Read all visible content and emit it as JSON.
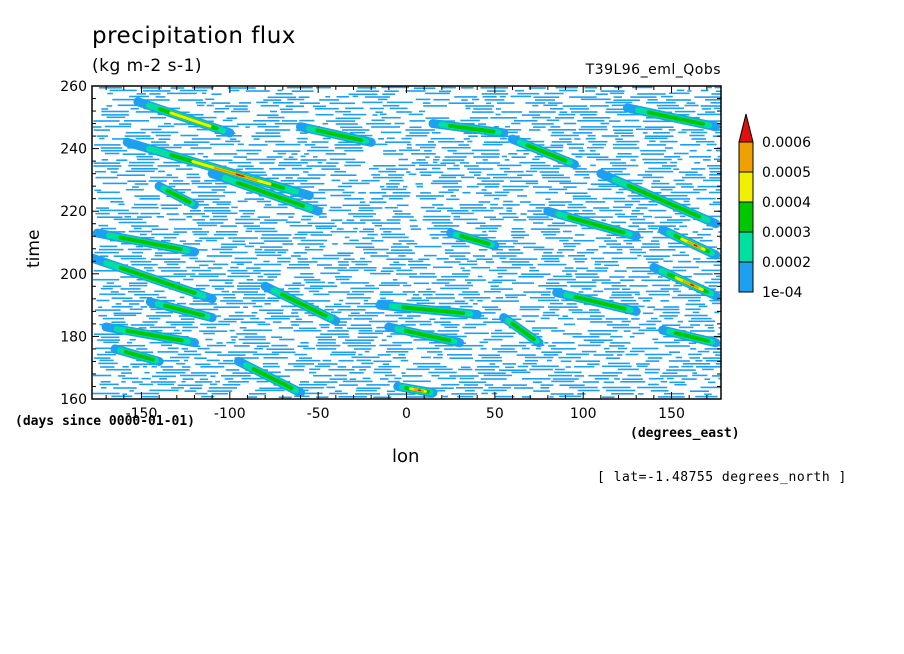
{
  "chart_data": {
    "type": "heatmap",
    "title": "precipitation flux",
    "units": "(kg m-2 s-1)",
    "run_id": "T39L96_eml_Qobs",
    "xlabel": "lon",
    "ylabel": "time",
    "x_units": "(degrees_east)",
    "y_units": "(days since 0000-01-01)",
    "note": "[ lat=-1.48755 degrees_north ]",
    "xlim": [
      -178,
      178
    ],
    "ylim": [
      160,
      260
    ],
    "x_ticks": [
      -150,
      -100,
      -50,
      0,
      50,
      100,
      150
    ],
    "x_tick_labels": [
      "-150",
      "-100",
      "-50",
      "0",
      "50",
      "100",
      "150"
    ],
    "y_ticks": [
      160,
      180,
      200,
      220,
      240,
      260
    ],
    "y_tick_labels": [
      "160",
      "180",
      "200",
      "220",
      "240",
      "260"
    ],
    "colorbar": {
      "levels": [
        0.0001,
        0.0002,
        0.0003,
        0.0004,
        0.0005,
        0.0006
      ],
      "labels": [
        "1e-04",
        "0.0002",
        "0.0003",
        "0.0004",
        "0.0005",
        "0.0006"
      ],
      "colors": [
        "#1ea0f0",
        "#00e0a0",
        "#00c800",
        "#f0f000",
        "#f0a000",
        "#e01010"
      ]
    },
    "streaks": [
      {
        "lon0": -152,
        "t0": 255,
        "lon1": -100,
        "t1": 245,
        "peak": 0.0004
      },
      {
        "lon0": -158,
        "t0": 242,
        "lon1": -55,
        "t1": 225,
        "peak": 0.0006
      },
      {
        "lon0": -110,
        "t0": 232,
        "lon1": -50,
        "t1": 220,
        "peak": 0.0003
      },
      {
        "lon0": -60,
        "t0": 247,
        "lon1": -20,
        "t1": 242,
        "peak": 0.0003
      },
      {
        "lon0": 15,
        "t0": 248,
        "lon1": 55,
        "t1": 245,
        "peak": 0.0003
      },
      {
        "lon0": 60,
        "t0": 243,
        "lon1": 95,
        "t1": 235,
        "peak": 0.0003
      },
      {
        "lon0": 110,
        "t0": 232,
        "lon1": 175,
        "t1": 216,
        "peak": 0.0003
      },
      {
        "lon0": 145,
        "t0": 214,
        "lon1": 175,
        "t1": 206,
        "peak": 0.0006
      },
      {
        "lon0": 140,
        "t0": 202,
        "lon1": 175,
        "t1": 193,
        "peak": 0.0006
      },
      {
        "lon0": 80,
        "t0": 220,
        "lon1": 130,
        "t1": 212,
        "peak": 0.0003
      },
      {
        "lon0": 25,
        "t0": 213,
        "lon1": 50,
        "t1": 209,
        "peak": 0.0003
      },
      {
        "lon0": -175,
        "t0": 213,
        "lon1": -120,
        "t1": 207,
        "peak": 0.0003
      },
      {
        "lon0": -178,
        "t0": 205,
        "lon1": -110,
        "t1": 192,
        "peak": 0.0003
      },
      {
        "lon0": -145,
        "t0": 191,
        "lon1": -110,
        "t1": 186,
        "peak": 0.0003
      },
      {
        "lon0": -80,
        "t0": 196,
        "lon1": -40,
        "t1": 185,
        "peak": 0.0003
      },
      {
        "lon0": -15,
        "t0": 190,
        "lon1": 40,
        "t1": 187,
        "peak": 0.0003
      },
      {
        "lon0": -10,
        "t0": 183,
        "lon1": 30,
        "t1": 178,
        "peak": 0.0003
      },
      {
        "lon0": 55,
        "t0": 186,
        "lon1": 75,
        "t1": 178,
        "peak": 0.0003
      },
      {
        "lon0": 85,
        "t0": 194,
        "lon1": 130,
        "t1": 188,
        "peak": 0.0003
      },
      {
        "lon0": -170,
        "t0": 183,
        "lon1": -120,
        "t1": 178,
        "peak": 0.0003
      },
      {
        "lon0": -165,
        "t0": 176,
        "lon1": -140,
        "t1": 172,
        "peak": 0.0003
      },
      {
        "lon0": -95,
        "t0": 172,
        "lon1": -60,
        "t1": 162,
        "peak": 0.0003
      },
      {
        "lon0": -5,
        "t0": 164,
        "lon1": 15,
        "t1": 162,
        "peak": 0.0006
      },
      {
        "lon0": 145,
        "t0": 182,
        "lon1": 175,
        "t1": 178,
        "peak": 0.0003
      },
      {
        "lon0": 125,
        "t0": 253,
        "lon1": 175,
        "t1": 247,
        "peak": 0.0003
      },
      {
        "lon0": -140,
        "t0": 228,
        "lon1": -120,
        "t1": 222,
        "peak": 0.0003
      }
    ]
  }
}
